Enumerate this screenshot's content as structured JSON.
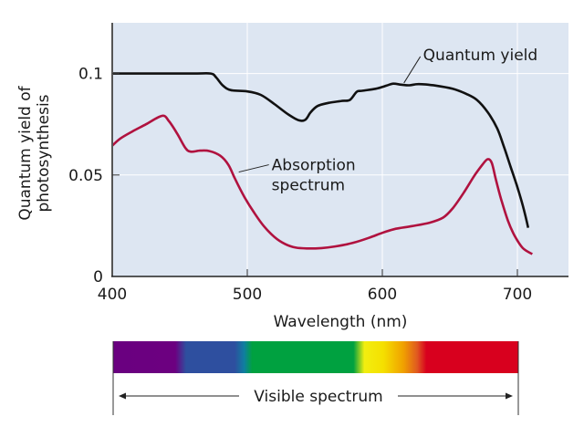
{
  "chart_data": {
    "type": "line",
    "title": "",
    "xlabel": "Wavelength (nm)",
    "ylabel_lines": [
      "Quantum yield of",
      "photosynthesis"
    ],
    "xlim": [
      400,
      738
    ],
    "ylim": [
      0,
      0.125
    ],
    "grid": true,
    "x_ticks": [
      {
        "value": 400,
        "label": "400"
      },
      {
        "value": 500,
        "label": "500"
      },
      {
        "value": 600,
        "label": "600"
      },
      {
        "value": 700,
        "label": "700"
      }
    ],
    "y_ticks": [
      {
        "value": 0,
        "label": "0"
      },
      {
        "value": 0.05,
        "label": "0.05"
      },
      {
        "value": 0.1,
        "label": "0.1"
      }
    ],
    "series": [
      {
        "name": "Quantum yield",
        "color": "#111111",
        "annotation_lines": [
          "Quantum yield"
        ],
        "annotation_point": [
          616,
          0.094
        ],
        "points": [
          [
            400,
            0.1
          ],
          [
            430,
            0.1
          ],
          [
            460,
            0.1
          ],
          [
            473,
            0.1
          ],
          [
            477,
            0.098
          ],
          [
            482,
            0.094
          ],
          [
            488,
            0.0918
          ],
          [
            500,
            0.0912
          ],
          [
            510,
            0.0895
          ],
          [
            520,
            0.085
          ],
          [
            530,
            0.08
          ],
          [
            538,
            0.077
          ],
          [
            543,
            0.0772
          ],
          [
            547,
            0.081
          ],
          [
            552,
            0.084
          ],
          [
            560,
            0.0855
          ],
          [
            570,
            0.0865
          ],
          [
            576,
            0.087
          ],
          [
            581,
            0.091
          ],
          [
            585,
            0.0915
          ],
          [
            595,
            0.0925
          ],
          [
            603,
            0.094
          ],
          [
            608,
            0.095
          ],
          [
            614,
            0.0945
          ],
          [
            620,
            0.0942
          ],
          [
            627,
            0.0948
          ],
          [
            640,
            0.094
          ],
          [
            652,
            0.0925
          ],
          [
            662,
            0.09
          ],
          [
            670,
            0.087
          ],
          [
            678,
            0.081
          ],
          [
            685,
            0.073
          ],
          [
            690,
            0.064
          ],
          [
            695,
            0.054
          ],
          [
            700,
            0.044
          ],
          [
            704,
            0.035
          ],
          [
            708,
            0.024
          ]
        ]
      },
      {
        "name": "Absorption spectrum",
        "color": "#b0123f",
        "annotation_lines": [
          "Absorption",
          "spectrum"
        ],
        "annotation_point": [
          491,
          0.051
        ],
        "points": [
          [
            400,
            0.0645
          ],
          [
            406,
            0.068
          ],
          [
            415,
            0.0715
          ],
          [
            425,
            0.075
          ],
          [
            437,
            0.0792
          ],
          [
            442,
            0.0765
          ],
          [
            448,
            0.0705
          ],
          [
            454,
            0.0635
          ],
          [
            458,
            0.0615
          ],
          [
            465,
            0.062
          ],
          [
            472,
            0.0618
          ],
          [
            480,
            0.0595
          ],
          [
            486,
            0.055
          ],
          [
            491,
            0.048
          ],
          [
            498,
            0.039
          ],
          [
            505,
            0.0315
          ],
          [
            512,
            0.025
          ],
          [
            520,
            0.0195
          ],
          [
            528,
            0.016
          ],
          [
            536,
            0.0142
          ],
          [
            545,
            0.0138
          ],
          [
            555,
            0.014
          ],
          [
            565,
            0.0148
          ],
          [
            578,
            0.0165
          ],
          [
            590,
            0.019
          ],
          [
            600,
            0.0215
          ],
          [
            610,
            0.0235
          ],
          [
            622,
            0.0248
          ],
          [
            635,
            0.0265
          ],
          [
            645,
            0.029
          ],
          [
            652,
            0.0335
          ],
          [
            660,
            0.041
          ],
          [
            668,
            0.0495
          ],
          [
            674,
            0.055
          ],
          [
            678,
            0.0578
          ],
          [
            681,
            0.056
          ],
          [
            684,
            0.048
          ],
          [
            688,
            0.038
          ],
          [
            693,
            0.0275
          ],
          [
            698,
            0.02
          ],
          [
            704,
            0.014
          ],
          [
            711,
            0.011
          ]
        ]
      }
    ]
  },
  "spectrum_bar": {
    "label": "Visible spectrum",
    "range_nm": [
      400,
      700
    ],
    "color_stops": [
      {
        "nm": 400,
        "color": "#6a0080"
      },
      {
        "nm": 446,
        "color": "#6c0080"
      },
      {
        "nm": 454,
        "color": "#2e4f9f"
      },
      {
        "nm": 490,
        "color": "#2e4f9f"
      },
      {
        "nm": 497,
        "color": "#0f7ea0"
      },
      {
        "nm": 503,
        "color": "#00a140"
      },
      {
        "nm": 578,
        "color": "#00a140"
      },
      {
        "nm": 586,
        "color": "#f2ee10"
      },
      {
        "nm": 600,
        "color": "#f5e000"
      },
      {
        "nm": 615,
        "color": "#f0a000"
      },
      {
        "nm": 625,
        "color": "#e05a20"
      },
      {
        "nm": 632,
        "color": "#d8001e"
      },
      {
        "nm": 700,
        "color": "#d8001e"
      }
    ]
  }
}
